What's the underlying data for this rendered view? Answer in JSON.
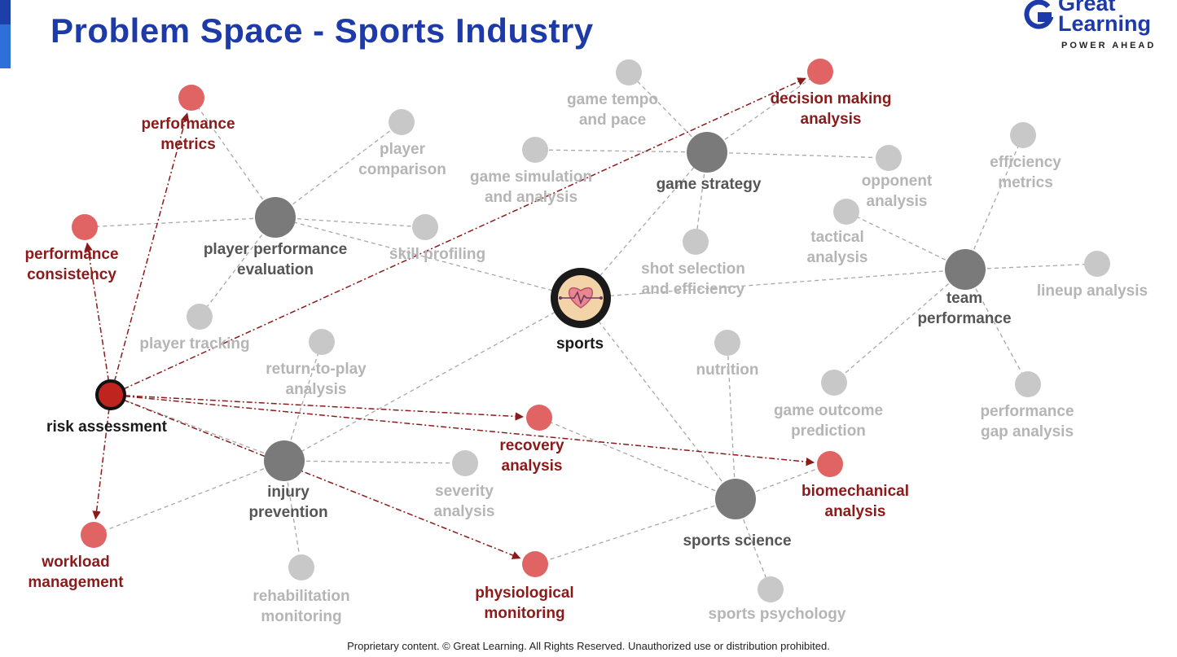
{
  "title": "Problem Space - Sports Industry",
  "logo": {
    "line1": "Great",
    "line2": "Learning",
    "tagline": "POWER AHEAD"
  },
  "footer": "Proprietary content. © Great Learning. All Rights Reserved. Unauthorized use or distribution prohibited.",
  "colors": {
    "title": "#1d3aa8",
    "highlight_node": "#e06464",
    "highlight_text": "#8b1a1a",
    "hub_node": "#7a7a7a",
    "leaf_node": "#c8c8c8",
    "leaf_text": "#b5b5b5",
    "arrow": "#8b1a1a"
  },
  "icons": {
    "center": "heart-pulse-icon"
  },
  "nodes": [
    {
      "id": "sports",
      "label": [
        "sports"
      ],
      "kind": "center"
    },
    {
      "id": "player_perf",
      "label": [
        "player performance",
        "evaluation"
      ],
      "kind": "hub"
    },
    {
      "id": "game_strategy",
      "label": [
        "game strategy"
      ],
      "kind": "hub"
    },
    {
      "id": "team_perf",
      "label": [
        "team",
        "performance"
      ],
      "kind": "hub"
    },
    {
      "id": "injury_prev",
      "label": [
        "injury",
        "prevention"
      ],
      "kind": "hub"
    },
    {
      "id": "sports_science",
      "label": [
        "sports science"
      ],
      "kind": "hub"
    },
    {
      "id": "risk",
      "label": [
        "risk assessment"
      ],
      "kind": "selected"
    },
    {
      "id": "perf_metrics",
      "label": [
        "performance",
        "metrics"
      ],
      "kind": "highlight"
    },
    {
      "id": "perf_consistency",
      "label": [
        "performance",
        "consistency"
      ],
      "kind": "highlight"
    },
    {
      "id": "decision",
      "label": [
        "decision making",
        "analysis"
      ],
      "kind": "highlight"
    },
    {
      "id": "recovery",
      "label": [
        "recovery",
        "analysis"
      ],
      "kind": "highlight"
    },
    {
      "id": "biomech",
      "label": [
        "biomechanical",
        "analysis"
      ],
      "kind": "highlight"
    },
    {
      "id": "physio",
      "label": [
        "physiological",
        "monitoring"
      ],
      "kind": "highlight"
    },
    {
      "id": "workload",
      "label": [
        "workload",
        "management"
      ],
      "kind": "highlight"
    },
    {
      "id": "player_comparison",
      "label": [
        "player",
        "comparison"
      ],
      "kind": "leaf"
    },
    {
      "id": "skill_profiling",
      "label": [
        "skill profiling"
      ],
      "kind": "leaf"
    },
    {
      "id": "player_tracking",
      "label": [
        "player tracking"
      ],
      "kind": "leaf"
    },
    {
      "id": "game_tempo",
      "label": [
        "game tempo",
        "and pace"
      ],
      "kind": "leaf"
    },
    {
      "id": "game_sim",
      "label": [
        "game simulation",
        "and analysis"
      ],
      "kind": "leaf"
    },
    {
      "id": "opponent",
      "label": [
        "opponent",
        "analysis"
      ],
      "kind": "leaf"
    },
    {
      "id": "shot_selection",
      "label": [
        "shot selection",
        "and efficiency"
      ],
      "kind": "leaf"
    },
    {
      "id": "tactical",
      "label": [
        "tactical",
        "analysis"
      ],
      "kind": "leaf"
    },
    {
      "id": "efficiency_metrics",
      "label": [
        "efficiency",
        "metrics"
      ],
      "kind": "leaf"
    },
    {
      "id": "lineup",
      "label": [
        "lineup analysis"
      ],
      "kind": "leaf"
    },
    {
      "id": "game_outcome",
      "label": [
        "game outcome",
        "prediction"
      ],
      "kind": "leaf"
    },
    {
      "id": "perf_gap",
      "label": [
        "performance",
        "gap analysis"
      ],
      "kind": "leaf"
    },
    {
      "id": "nutrition",
      "label": [
        "nutrition"
      ],
      "kind": "leaf"
    },
    {
      "id": "return_to_play",
      "label": [
        "return-to-play",
        "analysis"
      ],
      "kind": "leaf"
    },
    {
      "id": "severity",
      "label": [
        "severity",
        "analysis"
      ],
      "kind": "leaf"
    },
    {
      "id": "rehab",
      "label": [
        "rehabilitation",
        "monitoring"
      ],
      "kind": "leaf"
    },
    {
      "id": "sports_psych",
      "label": [
        "sports psychology"
      ],
      "kind": "leaf"
    }
  ],
  "edges": [
    [
      "sports",
      "player_perf"
    ],
    [
      "sports",
      "game_strategy"
    ],
    [
      "sports",
      "team_perf"
    ],
    [
      "sports",
      "injury_prev"
    ],
    [
      "sports",
      "sports_science"
    ],
    [
      "player_perf",
      "perf_metrics"
    ],
    [
      "player_perf",
      "player_comparison"
    ],
    [
      "player_perf",
      "skill_profiling"
    ],
    [
      "player_perf",
      "perf_consistency"
    ],
    [
      "player_perf",
      "player_tracking"
    ],
    [
      "game_strategy",
      "game_tempo"
    ],
    [
      "game_strategy",
      "decision"
    ],
    [
      "game_strategy",
      "game_sim"
    ],
    [
      "game_strategy",
      "opponent"
    ],
    [
      "game_strategy",
      "shot_selection"
    ],
    [
      "team_perf",
      "tactical"
    ],
    [
      "team_perf",
      "efficiency_metrics"
    ],
    [
      "team_perf",
      "lineup"
    ],
    [
      "team_perf",
      "game_outcome"
    ],
    [
      "team_perf",
      "perf_gap"
    ],
    [
      "injury_prev",
      "return_to_play"
    ],
    [
      "injury_prev",
      "severity"
    ],
    [
      "injury_prev",
      "rehab"
    ],
    [
      "injury_prev",
      "workload"
    ],
    [
      "injury_prev",
      "risk"
    ],
    [
      "sports_science",
      "recovery"
    ],
    [
      "sports_science",
      "biomech"
    ],
    [
      "sports_science",
      "physio"
    ],
    [
      "sports_science",
      "nutrition"
    ],
    [
      "sports_science",
      "sports_psych"
    ]
  ],
  "arrows": [
    [
      "risk",
      "perf_metrics"
    ],
    [
      "risk",
      "perf_consistency"
    ],
    [
      "risk",
      "decision"
    ],
    [
      "risk",
      "recovery"
    ],
    [
      "risk",
      "biomech"
    ],
    [
      "risk",
      "physio"
    ],
    [
      "risk",
      "workload"
    ]
  ]
}
